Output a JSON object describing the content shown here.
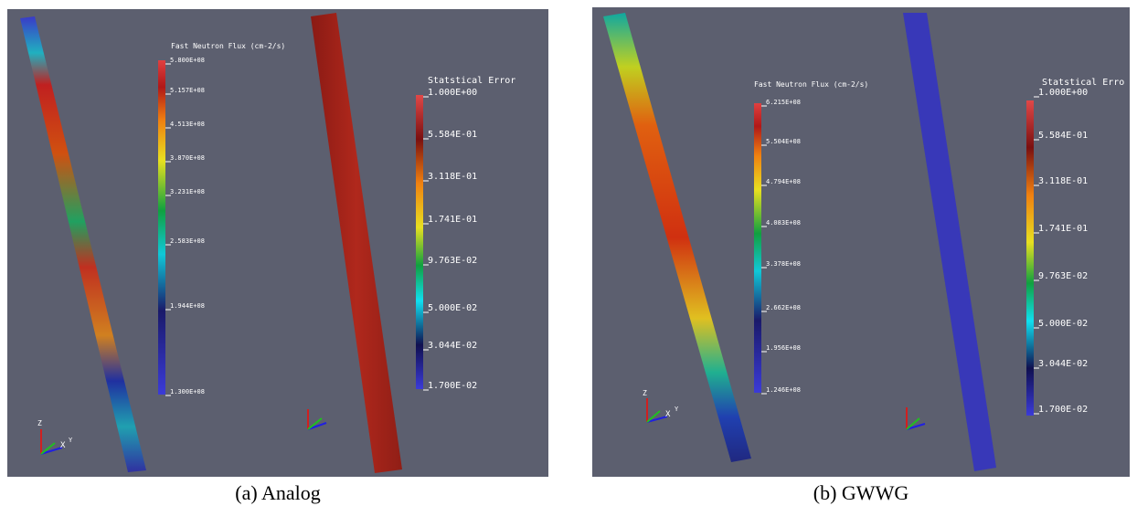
{
  "panels": [
    {
      "caption": "(a) Analog",
      "flux_legend": {
        "title": "Fast Neutron Flux (cm-2/s)",
        "ticks": [
          "5.800E+08",
          "5.157E+08",
          "4.513E+08",
          "3.870E+08",
          "3.231E+08",
          "2.583E+08",
          "1.944E+08",
          "1.300E+08"
        ]
      },
      "error_legend": {
        "title": "Statstical Error",
        "ticks": [
          "1.000E+00",
          "5.584E-01",
          "3.118E-01",
          "1.741E-01",
          "9.763E-02",
          "5.000E-02",
          "3.044E-02",
          "1.700E-02"
        ]
      },
      "axis_labels": [
        "Z",
        "X",
        "Y"
      ]
    },
    {
      "caption": "(b) GWWG",
      "flux_legend": {
        "title": "Fast Neutron Flux (cm-2/s)",
        "ticks": [
          "6.215E+08",
          "5.504E+08",
          "4.794E+08",
          "4.083E+08",
          "3.378E+08",
          "2.662E+08",
          "1.956E+08",
          "1.246E+08"
        ]
      },
      "error_legend": {
        "title": "Statstical Erro",
        "ticks": [
          "1.000E+00",
          "5.584E-01",
          "3.118E-01",
          "1.741E-01",
          "9.763E-02",
          "5.000E-02",
          "3.044E-02",
          "1.700E-02"
        ]
      },
      "axis_labels": [
        "Z",
        "X",
        "Y"
      ]
    }
  ]
}
